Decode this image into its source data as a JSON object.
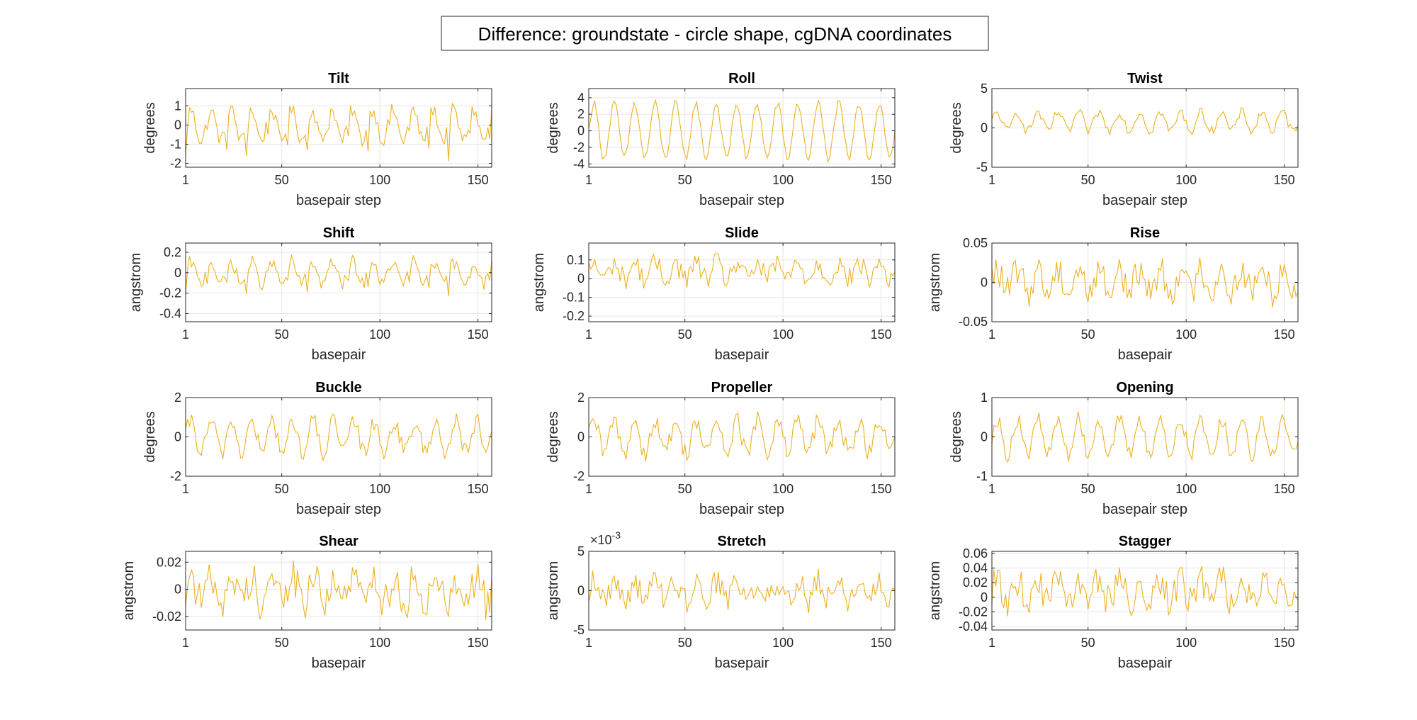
{
  "figure": {
    "title": "Difference: groundstate - circle shape, cgDNA coordinates",
    "line_color": "#EDB120",
    "axis_color": "#262626",
    "grid_color": "#E6E6E6"
  },
  "chart_data": [
    {
      "type": "line",
      "title": "Tilt",
      "xlabel": "basepair step",
      "ylabel": "degrees",
      "xlim": [
        1,
        157
      ],
      "ylim": [
        -2.2,
        1.9
      ],
      "xticks": [
        1,
        50,
        100,
        150
      ],
      "yticks": [
        -2,
        -1,
        0,
        1
      ],
      "ytick_labels": [
        "-2",
        "-1",
        "0",
        "1"
      ],
      "grid": true,
      "points": 157,
      "period": 10.3,
      "pattern": "spikes",
      "amplitude": 1.6,
      "noise": 0.35,
      "values": []
    },
    {
      "type": "line",
      "title": "Roll",
      "xlabel": "basepair step",
      "ylabel": "degrees",
      "xlim": [
        1,
        157
      ],
      "ylim": [
        -4.4,
        5.1
      ],
      "xticks": [
        1,
        50,
        100,
        150
      ],
      "yticks": [
        -4,
        -2,
        0,
        2,
        4
      ],
      "ytick_labels": [
        "-4",
        "-2",
        "0",
        "2",
        "4"
      ],
      "grid": true,
      "points": 157,
      "period": 10.4,
      "pattern": "wave",
      "amplitude": 3.3,
      "noise": 0.5,
      "values": []
    },
    {
      "type": "line",
      "title": "Twist",
      "xlabel": "basepair step",
      "ylabel": "degrees",
      "xlim": [
        1,
        157
      ],
      "ylim": [
        -5,
        5
      ],
      "xticks": [
        1,
        50,
        100,
        150
      ],
      "yticks": [
        -5,
        0,
        5
      ],
      "ytick_labels": [
        "-5",
        "0",
        "5"
      ],
      "grid": true,
      "points": 157,
      "period": 10.4,
      "pattern": "wave",
      "amplitude": 1.2,
      "offset": 0.8,
      "noise": 0.6,
      "values": []
    },
    {
      "type": "line",
      "title": "Shift",
      "xlabel": "basepair",
      "ylabel": "angstrom",
      "xlim": [
        1,
        157
      ],
      "ylim": [
        -0.48,
        0.29
      ],
      "xticks": [
        1,
        50,
        100,
        150
      ],
      "yticks": [
        -0.4,
        -0.2,
        0,
        0.2
      ],
      "ytick_labels": [
        "-0.4",
        "-0.2",
        "0",
        "0.2"
      ],
      "grid": true,
      "points": 157,
      "period": 10.3,
      "pattern": "spikes",
      "amplitude": 0.22,
      "noise": 0.06,
      "values": []
    },
    {
      "type": "line",
      "title": "Slide",
      "xlabel": "basepair",
      "ylabel": "angstrom",
      "xlim": [
        1,
        157
      ],
      "ylim": [
        -0.23,
        0.19
      ],
      "xticks": [
        1,
        50,
        100,
        150
      ],
      "yticks": [
        -0.2,
        -0.1,
        0,
        0.1
      ],
      "ytick_labels": [
        "-0.2",
        "-0.1",
        "0",
        "0.1"
      ],
      "grid": true,
      "points": 157,
      "period": 10.4,
      "pattern": "noise",
      "amplitude": 0.04,
      "offset": 0.04,
      "noise": 0.06,
      "values": []
    },
    {
      "type": "line",
      "title": "Rise",
      "xlabel": "basepair",
      "ylabel": "angstrom",
      "xlim": [
        1,
        157
      ],
      "ylim": [
        -0.05,
        0.05
      ],
      "xticks": [
        1,
        50,
        100,
        150
      ],
      "yticks": [
        -0.05,
        0,
        0.05
      ],
      "ytick_labels": [
        "-0.05",
        "0",
        "0.05"
      ],
      "grid": true,
      "points": 157,
      "period": 10.4,
      "pattern": "noise",
      "amplitude": 0.015,
      "offset": 0.002,
      "noise": 0.02,
      "values": []
    },
    {
      "type": "line",
      "title": "Buckle",
      "xlabel": "basepair step",
      "ylabel": "degrees",
      "xlim": [
        1,
        157
      ],
      "ylim": [
        -2,
        2
      ],
      "xticks": [
        1,
        50,
        100,
        150
      ],
      "yticks": [
        -2,
        0,
        2
      ],
      "ytick_labels": [
        "-2",
        "0",
        "2"
      ],
      "grid": true,
      "points": 157,
      "period": 10.4,
      "pattern": "wave",
      "amplitude": 0.8,
      "noise": 0.45,
      "values": []
    },
    {
      "type": "line",
      "title": "Propeller",
      "xlabel": "basepair step",
      "ylabel": "degrees",
      "xlim": [
        1,
        157
      ],
      "ylim": [
        -2,
        2
      ],
      "xticks": [
        1,
        50,
        100,
        150
      ],
      "yticks": [
        -2,
        0,
        2
      ],
      "ytick_labels": [
        "-2",
        "0",
        "2"
      ],
      "grid": true,
      "points": 157,
      "period": 10.4,
      "pattern": "wave",
      "amplitude": 0.8,
      "noise": 0.5,
      "values": []
    },
    {
      "type": "line",
      "title": "Opening",
      "xlabel": "basepair step",
      "ylabel": "degrees",
      "xlim": [
        1,
        157
      ],
      "ylim": [
        -1,
        1
      ],
      "xticks": [
        1,
        50,
        100,
        150
      ],
      "yticks": [
        -1,
        0,
        1
      ],
      "ytick_labels": [
        "-1",
        "0",
        "1"
      ],
      "grid": true,
      "points": 157,
      "period": 10.4,
      "pattern": "wave",
      "amplitude": 0.45,
      "noise": 0.2,
      "values": []
    },
    {
      "type": "line",
      "title": "Shear",
      "xlabel": "basepair",
      "ylabel": "angstrom",
      "xlim": [
        1,
        157
      ],
      "ylim": [
        -0.03,
        0.028
      ],
      "xticks": [
        1,
        50,
        100,
        150
      ],
      "yticks": [
        -0.02,
        0,
        0.02
      ],
      "ytick_labels": [
        "-0.02",
        "0",
        "0.02"
      ],
      "grid": true,
      "points": 157,
      "period": 10.4,
      "pattern": "noise",
      "amplitude": 0.01,
      "noise": 0.014,
      "values": []
    },
    {
      "type": "line",
      "title": "Stretch",
      "xlabel": "basepair",
      "ylabel": "angstrom",
      "xlim": [
        1,
        157
      ],
      "ylim": [
        -5,
        5
      ],
      "xticks": [
        1,
        50,
        100,
        150
      ],
      "yticks": [
        -5,
        0,
        5
      ],
      "ytick_labels": [
        "-5",
        "0",
        "5"
      ],
      "grid": true,
      "points": 157,
      "period": 10.4,
      "pattern": "noise",
      "amplitude": 1.2,
      "noise": 1.7,
      "values": [],
      "exponent_label": "×10",
      "exponent_sup": "-3"
    },
    {
      "type": "line",
      "title": "Stagger",
      "xlabel": "basepair",
      "ylabel": "angstrom",
      "xlim": [
        1,
        157
      ],
      "ylim": [
        -0.045,
        0.063
      ],
      "xticks": [
        1,
        50,
        100,
        150
      ],
      "yticks": [
        -0.04,
        -0.02,
        0,
        0.02,
        0.04,
        0.06
      ],
      "ytick_labels": [
        "-0.04",
        "-0.02",
        "0",
        "0.02",
        "0.04",
        "0.06"
      ],
      "grid": true,
      "points": 157,
      "period": 10.4,
      "pattern": "noise",
      "amplitude": 0.015,
      "offset": 0.008,
      "noise": 0.022,
      "values": []
    }
  ]
}
